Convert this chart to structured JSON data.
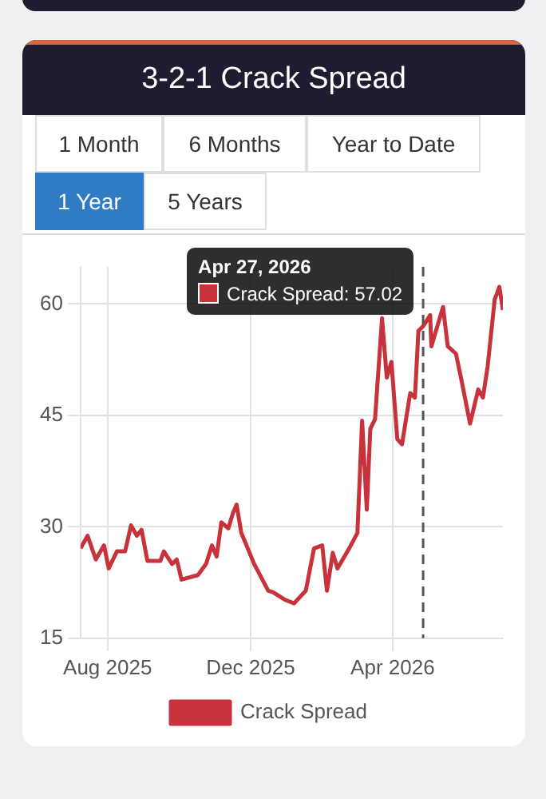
{
  "chart_data": {
    "type": "line",
    "title": "3-2-1 Crack Spread",
    "x": [
      "2025-07-09",
      "2025-07-15",
      "2025-07-22",
      "2025-07-29",
      "2025-08-02",
      "2025-08-09",
      "2025-08-16",
      "2025-08-21",
      "2025-08-26",
      "2025-08-30",
      "2025-09-04",
      "2025-09-15",
      "2025-09-18",
      "2025-09-25",
      "2025-09-29",
      "2025-10-03",
      "2025-10-17",
      "2025-10-24",
      "2025-10-29",
      "2025-11-02",
      "2025-11-06",
      "2025-11-12",
      "2025-11-16",
      "2025-11-19",
      "2025-11-23",
      "2025-12-04",
      "2025-12-16",
      "2025-12-20",
      "2025-12-30",
      "2026-01-07",
      "2026-01-17",
      "2026-01-24",
      "2026-01-31",
      "2026-02-04",
      "2026-02-09",
      "2026-02-13",
      "2026-02-23",
      "2026-03-02",
      "2026-03-06",
      "2026-03-10",
      "2026-03-13",
      "2026-03-17",
      "2026-03-23",
      "2026-03-27",
      "2026-03-31",
      "2026-04-05",
      "2026-04-09",
      "2026-04-16",
      "2026-04-20",
      "2026-04-23",
      "2026-04-27",
      "2026-05-03",
      "2026-05-04",
      "2026-05-14",
      "2026-05-18",
      "2026-05-25",
      "2026-05-30",
      "2026-06-06",
      "2026-06-13",
      "2026-06-17",
      "2026-06-21",
      "2026-06-27",
      "2026-07-01",
      "2026-07-04"
    ],
    "series": [
      {
        "name": "Crack Spread",
        "color": "#c8323a",
        "values": [
          27.1,
          28.8,
          25.6,
          27.5,
          24.4,
          26.7,
          26.7,
          30.2,
          28.8,
          29.6,
          25.4,
          25.4,
          26.7,
          25.0,
          25.6,
          22.9,
          23.5,
          25.0,
          27.5,
          26.0,
          30.6,
          29.8,
          31.9,
          33.0,
          29.2,
          25.0,
          21.4,
          21.2,
          20.2,
          19.7,
          21.4,
          27.1,
          27.5,
          21.4,
          26.5,
          24.4,
          27.1,
          29.2,
          44.3,
          32.3,
          43.2,
          44.5,
          58.1,
          50.1,
          52.2,
          41.8,
          41.1,
          48.0,
          47.4,
          56.4,
          57.0,
          58.5,
          54.3,
          59.6,
          54.3,
          53.3,
          49.5,
          43.9,
          48.5,
          47.4,
          51.6,
          60.6,
          62.3,
          59.2
        ]
      }
    ],
    "xlim": [
      "2025-07-09",
      "2026-07-04"
    ],
    "xticks": [
      {
        "value": "2025-08-01",
        "label": "Aug 2025"
      },
      {
        "value": "2025-12-01",
        "label": "Dec 2025"
      },
      {
        "value": "2026-04-01",
        "label": "Apr 2026"
      }
    ],
    "ylim": [
      15,
      65
    ],
    "yticks": [
      15,
      30,
      45,
      60
    ],
    "grid": true,
    "legend": "bottom",
    "marker": "none",
    "line_style": "solid",
    "ref_lines": [
      {
        "axis": "x",
        "value": "2026-04-27",
        "color": "#555555",
        "line_style": "dashed"
      }
    ],
    "annotations": [
      "1 Month",
      "6 Months",
      "Year to Date",
      "1 Year",
      "5 Years",
      "Apr 27, 2026",
      "Crack Spread: 57.02"
    ]
  }
}
